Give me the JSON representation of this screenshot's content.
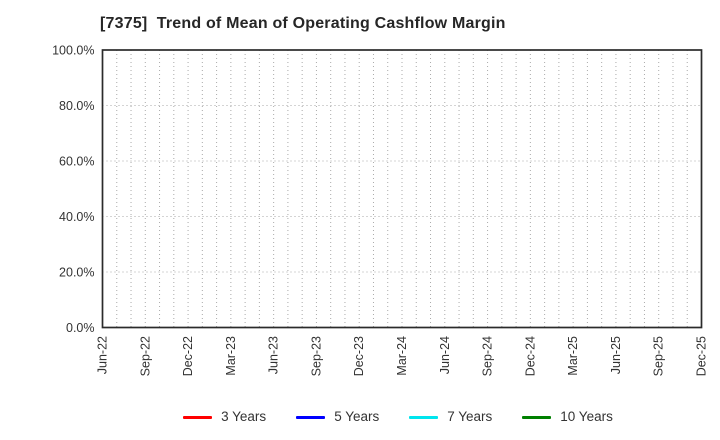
{
  "title": "[7375]  Trend of Mean of Operating Cashflow Margin",
  "colors": {
    "background": "#ffffff",
    "plot_border": "#2b2b2b",
    "grid": "#aaaaaa",
    "tick_label": "#333333",
    "title_text": "#262626"
  },
  "legend": {
    "items": [
      {
        "label": "3 Years",
        "color": "#ff0000"
      },
      {
        "label": "5 Years",
        "color": "#0000ff"
      },
      {
        "label": "7 Years",
        "color": "#00e5ee"
      },
      {
        "label": "10 Years",
        "color": "#008000"
      }
    ]
  },
  "chart_data": {
    "type": "line",
    "title": "[7375]  Trend of Mean of Operating Cashflow Margin",
    "xlabel": "",
    "ylabel": "",
    "x_tick_labels": [
      "Jun-22",
      "Sep-22",
      "Dec-22",
      "Mar-23",
      "Jun-23",
      "Sep-23",
      "Dec-23",
      "Mar-24",
      "Jun-24",
      "Sep-24",
      "Dec-24",
      "Mar-25",
      "Jun-25",
      "Sep-25",
      "Dec-25"
    ],
    "months_per_labeled_tick": 3,
    "minor_vertical_gridlines": "monthly",
    "y_ticks": [
      0,
      20,
      40,
      60,
      80,
      100
    ],
    "y_tick_labels": [
      "0.0%",
      "20.0%",
      "40.0%",
      "60.0%",
      "80.0%",
      "100.0%"
    ],
    "ylim": [
      0,
      100
    ],
    "grid": true,
    "grid_style": "dotted",
    "legend_position": "bottom",
    "series": [
      {
        "name": "3 Years",
        "color": "#ff0000",
        "values": []
      },
      {
        "name": "5 Years",
        "color": "#0000ff",
        "values": []
      },
      {
        "name": "7 Years",
        "color": "#00e5ee",
        "values": []
      },
      {
        "name": "10 Years",
        "color": "#008000",
        "values": []
      }
    ]
  }
}
